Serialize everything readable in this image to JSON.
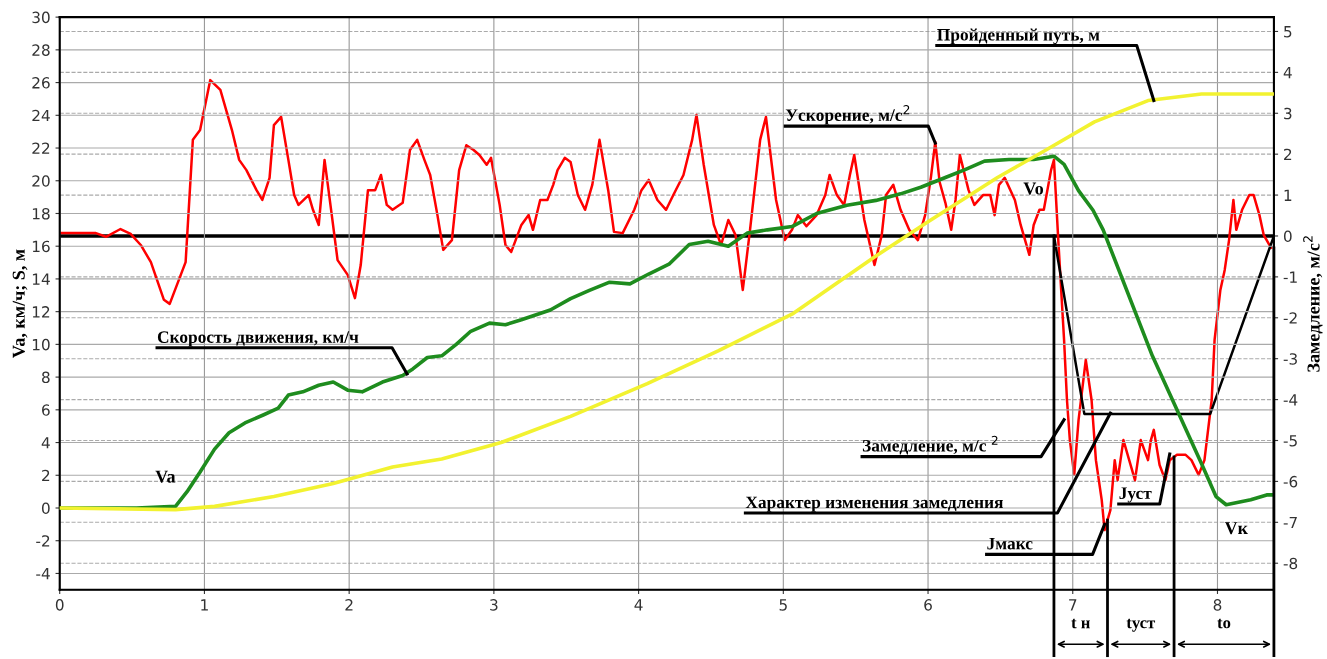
{
  "chart_data": {
    "type": "line",
    "ylabel": "Va, км/ч; S, м",
    "y2label": "Замедление, м/с$^{2}$",
    "xlim": [
      0,
      8.39
    ],
    "xticks": [
      0,
      1,
      2,
      3,
      4,
      5,
      6,
      7,
      8
    ],
    "ylim": [
      -5,
      30
    ],
    "yticks": [
      -4,
      -2,
      0,
      2,
      4,
      6,
      8,
      10,
      12,
      14,
      16,
      18,
      20,
      22,
      24,
      26,
      28,
      30
    ],
    "y2lim": [
      -8.65,
      5.35
    ],
    "y2ticks": [
      -8,
      -7,
      -6,
      -5,
      -4,
      -3,
      -2,
      -1,
      0,
      1,
      2,
      3,
      4,
      5
    ],
    "grid": true,
    "line_style": "solid",
    "marker": "none",
    "series": [
      {
        "color": "#ff0000",
        "axis": "y2",
        "x": [
          0,
          0.25,
          0.32,
          0.42,
          0.49,
          0.56,
          0.63,
          0.72,
          0.76,
          0.87,
          0.92,
          0.97,
          1.04,
          1.11,
          1.19,
          1.24,
          1.29,
          1.36,
          1.4,
          1.45,
          1.48,
          1.53,
          1.58,
          1.62,
          1.65,
          1.72,
          1.75,
          1.79,
          1.83,
          1.88,
          1.92,
          1.99,
          2.04,
          2.08,
          2.13,
          2.18,
          2.22,
          2.26,
          2.3,
          2.37,
          2.42,
          2.47,
          2.52,
          2.56,
          2.61,
          2.65,
          2.71,
          2.76,
          2.81,
          2.86,
          2.9,
          2.95,
          2.98,
          3.04,
          3.08,
          3.12,
          3.19,
          3.24,
          3.27,
          3.32,
          3.37,
          3.41,
          3.44,
          3.49,
          3.53,
          3.58,
          3.63,
          3.68,
          3.73,
          3.79,
          3.83,
          3.89,
          3.97,
          4.02,
          4.07,
          4.13,
          4.19,
          4.24,
          4.31,
          4.37,
          4.4,
          4.45,
          4.52,
          4.57,
          4.62,
          4.67,
          4.72,
          4.77,
          4.84,
          4.88,
          4.95,
          5.01,
          5.06,
          5.1,
          5.16,
          5.23,
          5.29,
          5.32,
          5.37,
          5.42,
          5.46,
          5.49,
          5.56,
          5.63,
          5.68,
          5.71,
          5.76,
          5.81,
          5.87,
          5.93,
          5.98,
          6.02,
          6.05,
          6.08,
          6.12,
          6.16,
          6.19,
          6.22,
          6.28,
          6.32,
          6.38,
          6.43,
          6.46,
          6.49,
          6.53,
          6.6,
          6.64,
          6.7,
          6.73,
          6.77,
          6.8,
          6.85,
          6.87,
          6.9,
          6.94,
          6.96,
          6.98,
          7.01,
          7.04,
          7.09,
          7.13,
          7.16,
          7.2,
          7.22,
          7.26,
          7.29,
          7.31,
          7.35,
          7.39,
          7.43,
          7.47,
          7.52,
          7.54,
          7.56,
          7.6,
          7.64,
          7.67,
          7.72,
          7.78,
          7.82,
          7.87,
          7.91,
          7.96,
          7.98,
          8.02,
          8.05,
          8.08,
          8.11,
          8.13,
          8.17,
          8.22,
          8.25,
          8.29,
          8.32,
          8.37
        ],
        "values": [
          0.07,
          0.07,
          -0.02,
          0.17,
          0.05,
          -0.22,
          -0.64,
          -1.56,
          -1.66,
          -0.64,
          2.35,
          2.59,
          3.81,
          3.57,
          2.59,
          1.86,
          1.61,
          1.12,
          0.88,
          1.42,
          2.71,
          2.91,
          1.86,
          1.0,
          0.76,
          1.0,
          0.64,
          0.27,
          1.86,
          0.51,
          -0.59,
          -0.95,
          -1.52,
          -0.71,
          1.12,
          1.12,
          1.49,
          0.76,
          0.64,
          0.81,
          2.1,
          2.35,
          1.86,
          1.49,
          0.51,
          -0.34,
          -0.1,
          1.61,
          2.22,
          2.1,
          1.98,
          1.74,
          1.91,
          0.76,
          -0.22,
          -0.39,
          0.27,
          0.51,
          0.15,
          0.88,
          0.88,
          1.25,
          1.61,
          1.91,
          1.81,
          1.0,
          0.64,
          1.25,
          2.35,
          1.12,
          0.1,
          0.07,
          0.64,
          1.12,
          1.37,
          0.88,
          0.64,
          1.0,
          1.49,
          2.35,
          2.96,
          1.74,
          0.27,
          -0.22,
          0.39,
          0.02,
          -1.32,
          0.15,
          2.35,
          2.91,
          0.88,
          -0.1,
          0.15,
          0.51,
          0.24,
          0.51,
          1.0,
          1.49,
          1.0,
          0.76,
          1.49,
          1.98,
          0.39,
          -0.71,
          0.02,
          1.0,
          1.25,
          0.64,
          0.15,
          -0.1,
          0.51,
          1.44,
          2.3,
          1.32,
          0.81,
          0.15,
          0.88,
          1.98,
          1.12,
          0.76,
          1.0,
          1.0,
          0.51,
          1.25,
          1.42,
          0.88,
          0.27,
          -0.46,
          0.27,
          0.64,
          0.64,
          1.61,
          1.86,
          -0.1,
          -2.54,
          -4.01,
          -4.99,
          -5.84,
          -4.5,
          -3.03,
          -4.01,
          -5.48,
          -6.45,
          -7.19,
          -6.7,
          -5.48,
          -5.97,
          -4.99,
          -5.48,
          -5.97,
          -4.99,
          -5.48,
          -4.99,
          -4.74,
          -5.6,
          -5.97,
          -5.48,
          -5.35,
          -5.35,
          -5.48,
          -5.84,
          -5.48,
          -4.01,
          -2.54,
          -1.32,
          -0.83,
          -0.1,
          0.88,
          0.15,
          0.64,
          1.0,
          1.0,
          0.51,
          0.02,
          -0.29
        ]
      },
      {
        "color": "#1e8c1e",
        "x": [
          0,
          0.53,
          0.8,
          0.88,
          0.97,
          1.07,
          1.17,
          1.28,
          1.41,
          1.51,
          1.58,
          1.68,
          1.79,
          1.89,
          1.99,
          2.09,
          2.23,
          2.37,
          2.44,
          2.54,
          2.64,
          2.74,
          2.84,
          2.97,
          3.08,
          3.19,
          3.39,
          3.53,
          3.66,
          3.8,
          3.94,
          4.07,
          4.21,
          4.35,
          4.48,
          4.62,
          4.75,
          4.89,
          5.06,
          5.23,
          5.44,
          5.64,
          5.81,
          5.95,
          6.12,
          6.26,
          6.39,
          6.56,
          6.73,
          6.87,
          6.94,
          7.04,
          7.14,
          7.21,
          7.55,
          7.89,
          7.99,
          8.06,
          8.23,
          8.34,
          8.39
        ],
        "values": [
          0,
          0,
          0.1,
          1.0,
          2.2,
          3.6,
          4.6,
          5.2,
          5.7,
          6.1,
          6.9,
          7.1,
          7.5,
          7.7,
          7.2,
          7.1,
          7.7,
          8.1,
          8.5,
          9.2,
          9.3,
          10.0,
          10.8,
          11.3,
          11.2,
          11.5,
          12.1,
          12.8,
          13.3,
          13.8,
          13.7,
          14.3,
          14.9,
          16.1,
          16.3,
          16.0,
          16.8,
          17.0,
          17.2,
          18.0,
          18.5,
          18.8,
          19.2,
          19.6,
          20.2,
          20.7,
          21.2,
          21.3,
          21.3,
          21.5,
          21.0,
          19.4,
          18.2,
          17.0,
          9.3,
          2.7,
          0.7,
          0.2,
          0.5,
          0.8,
          0.8
        ]
      },
      {
        "color": "#f2f230",
        "x": [
          0,
          0.8,
          1.07,
          1.48,
          1.89,
          2.3,
          2.64,
          3.05,
          3.53,
          4.06,
          4.55,
          5.07,
          5.64,
          6.0,
          6.48,
          6.8,
          7.15,
          7.52,
          7.89,
          8.39
        ],
        "values": [
          0,
          -0.1,
          0.1,
          0.7,
          1.5,
          2.5,
          3.0,
          4.0,
          5.6,
          7.6,
          9.6,
          11.9,
          15.4,
          17.5,
          20.2,
          21.8,
          23.6,
          24.9,
          25.3,
          25.3
        ]
      },
      {
        "color": "#000000",
        "axis": "y2",
        "x": [
          6.87,
          7.08,
          7.95,
          8.39
        ],
        "values": [
          0,
          -4.35,
          -4.35,
          0
        ]
      }
    ],
    "ref_lines": [
      {
        "axis": "y2",
        "value": 0,
        "color": "#000000"
      },
      {
        "axis": "x",
        "value": 6.87,
        "color": "#000000"
      },
      {
        "axis": "x",
        "value": 7.24,
        "color": "#000000"
      },
      {
        "axis": "x",
        "value": 7.7,
        "color": "#000000"
      },
      {
        "axis": "x",
        "value": 8.39,
        "color": "#000000"
      }
    ],
    "annotations": [
      {
        "text": "Скорость движения, км/ч",
        "x": 2.4,
        "y": 8.2
      },
      {
        "text": "Ускорение, м/с$^{2}$",
        "x": 6.05,
        "y": 22.3
      },
      {
        "text": "Пройденный путь, м",
        "x": 7.56,
        "y": 24.9
      },
      {
        "text": "Замедление, м/с $^{2}$",
        "x": 6.94,
        "y": 5.4
      },
      {
        "text": "Характер изменения замедления",
        "x": 7.26,
        "y": 5.8
      },
      {
        "text": "Jмакс",
        "x": 7.22,
        "y": -1.0
      },
      {
        "text": "Jуст",
        "x": 7.67,
        "y": 3.3
      },
      "Va",
      "Vo",
      "Vк",
      "t н",
      "tуст",
      "tо"
    ]
  }
}
